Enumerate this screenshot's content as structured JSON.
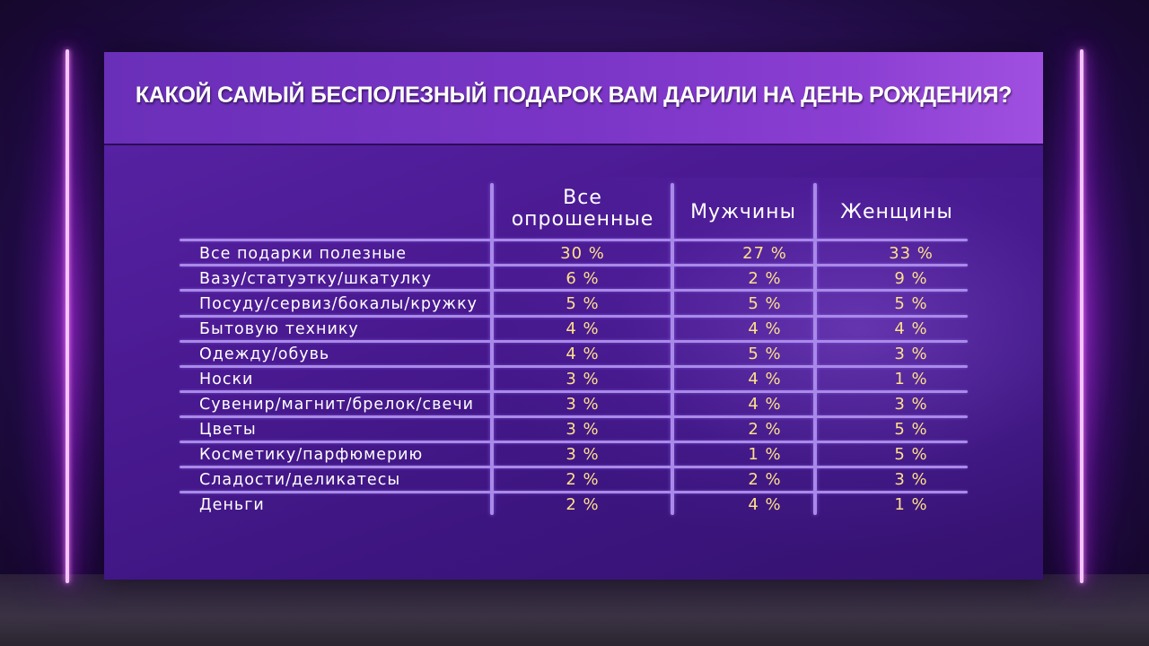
{
  "title": "КАКОЙ САМЫЙ БЕСПОЛЕЗНЫЙ ПОДАРОК ВАМ ДАРИЛИ НА ДЕНЬ РОЖДЕНИЯ?",
  "columns": {
    "all_line1": "Все",
    "all_line2": "опрошенные",
    "men": "Мужчины",
    "women": "Женщины"
  },
  "rows": [
    {
      "label": "Все подарки полезные",
      "all": "30 %",
      "men": "27 %",
      "women": "33 %"
    },
    {
      "label": "Вазу/статуэтку/шкатулку",
      "all": "6 %",
      "men": "2 %",
      "women": "9 %"
    },
    {
      "label": "Посуду/сервиз/бокалы/кружку",
      "all": "5 %",
      "men": "5 %",
      "women": "5 %"
    },
    {
      "label": "Бытовую технику",
      "all": "4 %",
      "men": "4 %",
      "women": "4 %"
    },
    {
      "label": "Одежду/обувь",
      "all": "4 %",
      "men": "5 %",
      "women": "3 %"
    },
    {
      "label": "Носки",
      "all": "3 %",
      "men": "4 %",
      "women": "1 %"
    },
    {
      "label": "Сувенир/магнит/брелок/свечи",
      "all": "3 %",
      "men": "4 %",
      "women": "3 %"
    },
    {
      "label": "Цветы",
      "all": "3 %",
      "men": "2 %",
      "women": "5 %"
    },
    {
      "label": "Косметику/парфюмерию",
      "all": "3 %",
      "men": "1 %",
      "women": "5 %"
    },
    {
      "label": "Сладости/деликатесы",
      "all": "2 %",
      "men": "2 %",
      "women": "3 %"
    },
    {
      "label": "Деньги",
      "all": "2 %",
      "men": "4 %",
      "women": "1 %"
    }
  ],
  "colors": {
    "value_text": "#ffe08a",
    "grid_line": "#a98ae8",
    "neon": "#d63cff"
  }
}
